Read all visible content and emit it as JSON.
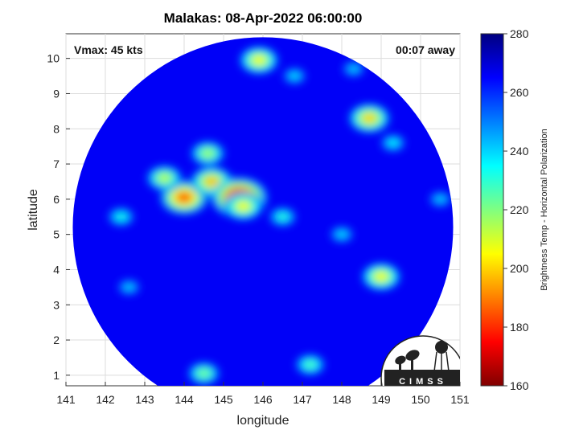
{
  "chart_data": {
    "type": "heatmap",
    "title": "Malakas: 08-Apr-2022 06:00:00",
    "xlabel": "longitude",
    "ylabel": "latitude",
    "xlim": [
      141,
      151
    ],
    "ylim": [
      0.7,
      10.7
    ],
    "xticks": [
      141,
      142,
      143,
      144,
      145,
      146,
      147,
      148,
      149,
      150,
      151
    ],
    "yticks": [
      1,
      2,
      3,
      4,
      5,
      6,
      7,
      8,
      9,
      10
    ],
    "grid": true,
    "annotations": {
      "left": "Vmax: 45 kts",
      "right": "00:07 away"
    },
    "colorbar": {
      "label": "Brightness Temp - Horizontal Polarization",
      "range": [
        160,
        280
      ],
      "ticks": [
        160,
        180,
        200,
        220,
        240,
        260,
        280
      ],
      "colormap": "jet"
    },
    "swath": {
      "center_lon": 146.0,
      "center_lat": 5.2,
      "radius_lat": 5.4
    },
    "background_temp": 266,
    "features": [
      {
        "lon": 144.0,
        "lat": 6.05,
        "tb": 185
      },
      {
        "lon": 143.5,
        "lat": 6.6,
        "tb": 212
      },
      {
        "lon": 144.7,
        "lat": 6.5,
        "tb": 198
      },
      {
        "lon": 145.4,
        "lat": 6.05,
        "tb": 168
      },
      {
        "lon": 145.5,
        "lat": 5.8,
        "tb": 205
      },
      {
        "lon": 144.6,
        "lat": 7.3,
        "tb": 215
      },
      {
        "lon": 145.9,
        "lat": 9.95,
        "tb": 205
      },
      {
        "lon": 148.7,
        "lat": 8.3,
        "tb": 200
      },
      {
        "lon": 149.0,
        "lat": 3.8,
        "tb": 205
      },
      {
        "lon": 144.5,
        "lat": 1.05,
        "tb": 220
      },
      {
        "lon": 147.2,
        "lat": 1.3,
        "tb": 225
      },
      {
        "lon": 149.3,
        "lat": 7.6,
        "tb": 235
      },
      {
        "lon": 146.5,
        "lat": 5.5,
        "tb": 230
      },
      {
        "lon": 148.0,
        "lat": 5.0,
        "tb": 238
      },
      {
        "lon": 142.4,
        "lat": 5.5,
        "tb": 232
      },
      {
        "lon": 142.6,
        "lat": 3.5,
        "tb": 240
      },
      {
        "lon": 146.8,
        "lat": 9.5,
        "tb": 238
      },
      {
        "lon": 148.3,
        "lat": 9.7,
        "tb": 240
      },
      {
        "lon": 150.5,
        "lat": 6.0,
        "tb": 240
      }
    ]
  },
  "logo": {
    "text": "CIMSS"
  }
}
